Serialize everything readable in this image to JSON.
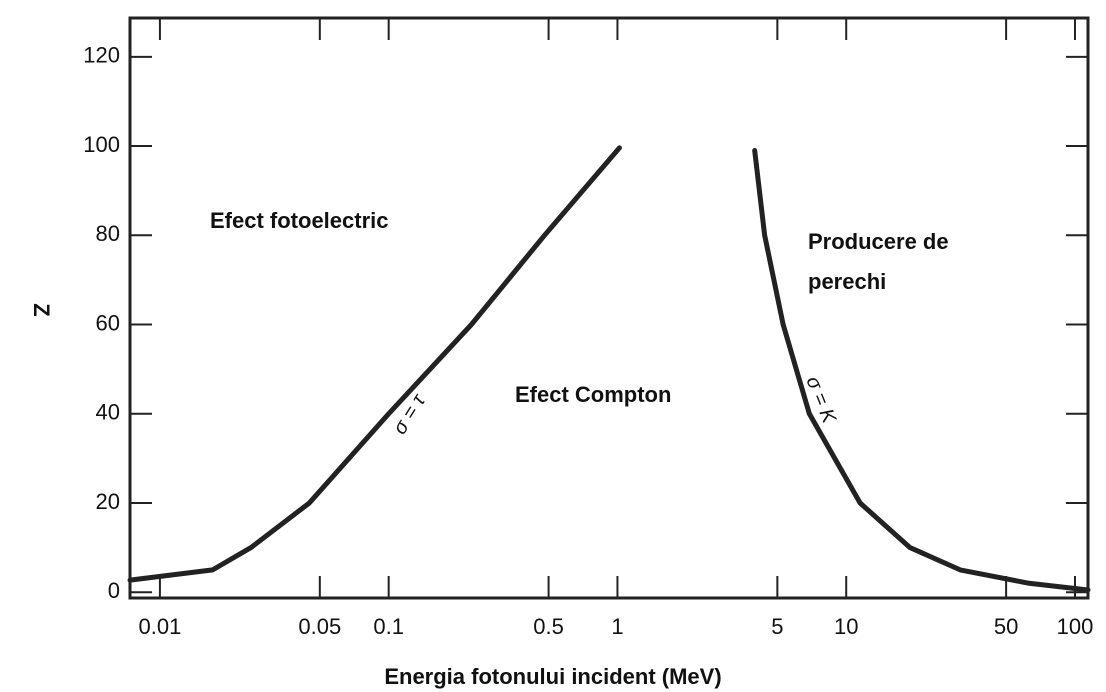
{
  "chart_data": {
    "type": "line",
    "xlabel": "Energia fotonului incident (MeV)",
    "ylabel": "Z",
    "log_x": true,
    "xlim": [
      0.0074,
      114
    ],
    "ylim": [
      -1.3,
      128.7
    ],
    "xticks": [
      0.01,
      0.05,
      0.1,
      0.5,
      1,
      5,
      10,
      50,
      100
    ],
    "yticks": [
      0,
      20,
      40,
      60,
      80,
      100,
      120
    ],
    "series": [
      {
        "name": "σ = τ",
        "color": "#222222",
        "x": [
          0.0074,
          0.017,
          0.025,
          0.045,
          0.1,
          0.23,
          0.48,
          1.02
        ],
        "values": [
          2.7,
          5,
          10,
          20,
          40,
          60,
          80,
          99.6
        ]
      },
      {
        "name": "σ = K",
        "color": "#222222",
        "x": [
          3.98,
          4.4,
          5.3,
          6.9,
          11.5,
          19,
          31.5,
          63,
          114
        ],
        "values": [
          99,
          80,
          60,
          40,
          20,
          10,
          5,
          2,
          0.5
        ]
      }
    ],
    "annotations": [
      {
        "text": [
          "Efect fotoelectric"
        ]
      },
      {
        "text": [
          "Efect Compton"
        ]
      },
      {
        "text": [
          "Producere de",
          "perechi"
        ]
      }
    ]
  }
}
